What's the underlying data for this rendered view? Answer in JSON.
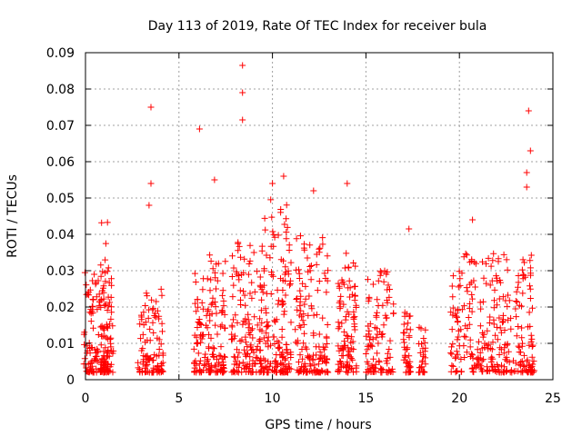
{
  "chart_data": {
    "type": "scatter",
    "title": "Day 113 of 2019, Rate Of TEC Index for receiver bula",
    "xlabel": "GPS time / hours",
    "ylabel": "ROTI / TECUs",
    "xlim": [
      0,
      25
    ],
    "ylim": [
      0,
      0.09
    ],
    "xticks": [
      "0",
      "5",
      "10",
      "15",
      "20",
      "25"
    ],
    "yticks": [
      "0",
      "0.01",
      "0.02",
      "0.03",
      "0.04",
      "0.05",
      "0.06",
      "0.07",
      "0.08",
      "0.09"
    ],
    "grid": true,
    "marker": "+",
    "color": "#ff0000",
    "segments": [
      {
        "x": [
          -0.1,
          1.5
        ],
        "ymax": 0.03,
        "density": 150
      },
      {
        "x": [
          0.8,
          1.4
        ],
        "ymax": 0.045,
        "density": 40
      },
      {
        "x": [
          2.8,
          4.2
        ],
        "ymax": 0.025,
        "density": 100
      },
      {
        "x": [
          5.8,
          7.5
        ],
        "ymax": 0.035,
        "density": 150
      },
      {
        "x": [
          7.8,
          9.5
        ],
        "ymax": 0.04,
        "density": 150
      },
      {
        "x": [
          9.5,
          11.0
        ],
        "ymax": 0.05,
        "density": 150
      },
      {
        "x": [
          11.2,
          13.0
        ],
        "ymax": 0.04,
        "density": 150
      },
      {
        "x": [
          13.5,
          14.5
        ],
        "ymax": 0.035,
        "density": 100
      },
      {
        "x": [
          15.0,
          16.5
        ],
        "ymax": 0.03,
        "density": 100
      },
      {
        "x": [
          17.0,
          17.4
        ],
        "ymax": 0.02,
        "density": 40
      },
      {
        "x": [
          17.8,
          18.2
        ],
        "ymax": 0.015,
        "density": 30
      },
      {
        "x": [
          19.5,
          24.0
        ],
        "ymax": 0.035,
        "density": 300
      }
    ],
    "outliers": [
      {
        "x": 3.5,
        "y": 0.075
      },
      {
        "x": 3.5,
        "y": 0.054
      },
      {
        "x": 3.4,
        "y": 0.048
      },
      {
        "x": 6.1,
        "y": 0.069
      },
      {
        "x": 6.9,
        "y": 0.055
      },
      {
        "x": 8.4,
        "y": 0.0865
      },
      {
        "x": 8.4,
        "y": 0.079
      },
      {
        "x": 8.4,
        "y": 0.0715
      },
      {
        "x": 10.0,
        "y": 0.054
      },
      {
        "x": 10.6,
        "y": 0.056
      },
      {
        "x": 12.2,
        "y": 0.052
      },
      {
        "x": 14.0,
        "y": 0.054
      },
      {
        "x": 17.3,
        "y": 0.0415
      },
      {
        "x": 20.7,
        "y": 0.044
      },
      {
        "x": 23.7,
        "y": 0.074
      },
      {
        "x": 23.8,
        "y": 0.063
      },
      {
        "x": 23.6,
        "y": 0.057
      },
      {
        "x": 23.6,
        "y": 0.053
      }
    ]
  }
}
